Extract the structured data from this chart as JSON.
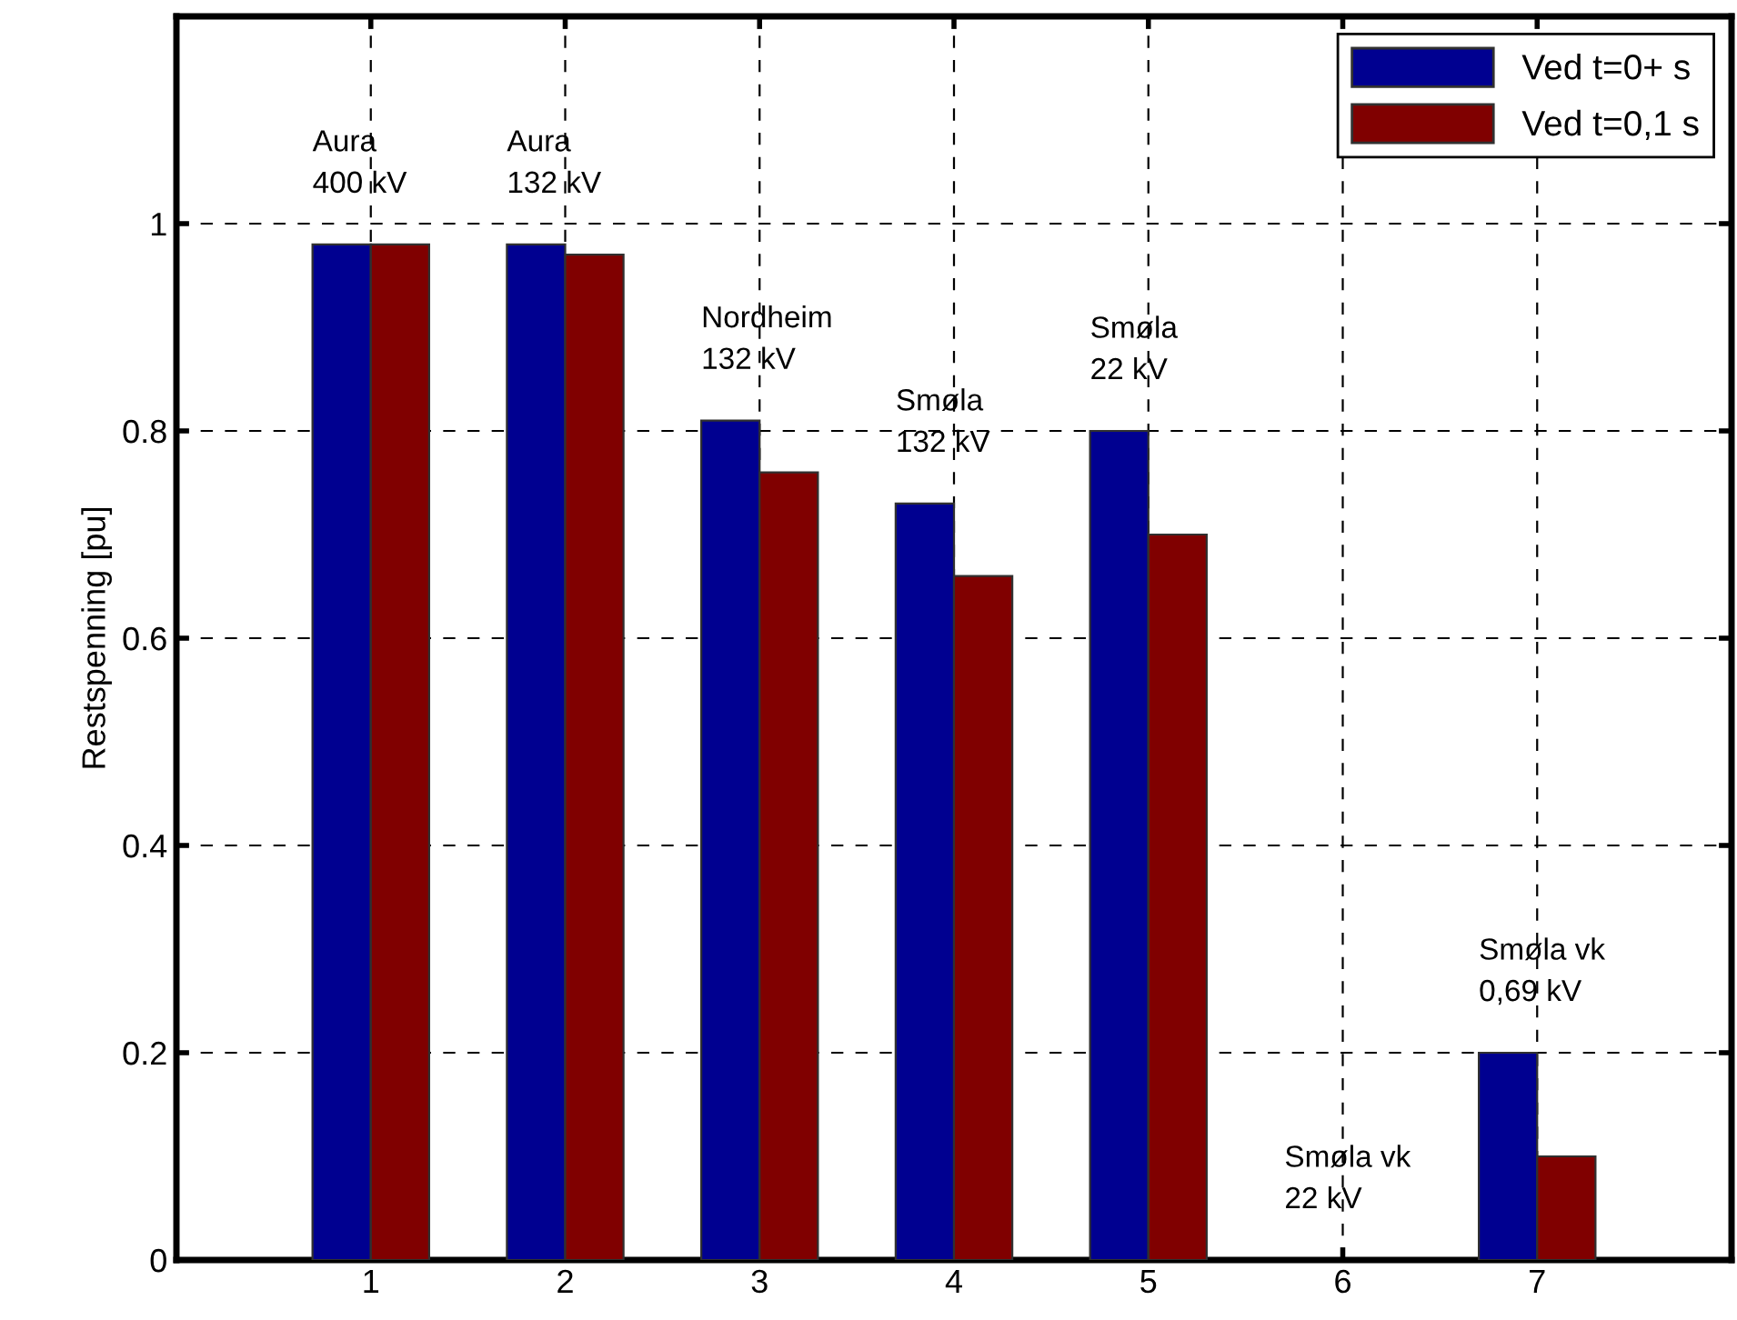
{
  "chart_data": {
    "type": "bar",
    "ylabel": "Restspenning [pu]",
    "categories": [
      "1",
      "2",
      "3",
      "4",
      "5",
      "6",
      "7"
    ],
    "series": [
      {
        "name": "Ved t=0+ s",
        "color": "#000090",
        "values": [
          0.98,
          0.98,
          0.81,
          0.73,
          0.8,
          0,
          0.2
        ]
      },
      {
        "name": "Ved t=0,1 s",
        "color": "#800000",
        "values": [
          0.98,
          0.97,
          0.76,
          0.66,
          0.7,
          0,
          0.1
        ]
      }
    ],
    "ylim": [
      0,
      1.2
    ],
    "yticks": [
      0,
      0.2,
      0.4,
      0.6,
      0.8,
      1
    ],
    "annotations": [
      "Aura\n400 kV",
      "Aura\n132 kV",
      "Nordheim\n132 kV",
      "Smøla\n132 kV",
      "Smøla\n22 kV",
      "Smøla vk\n22 kV",
      "Smøla vk\n0,69 kV"
    ],
    "grid": true,
    "legend": "top right"
  }
}
